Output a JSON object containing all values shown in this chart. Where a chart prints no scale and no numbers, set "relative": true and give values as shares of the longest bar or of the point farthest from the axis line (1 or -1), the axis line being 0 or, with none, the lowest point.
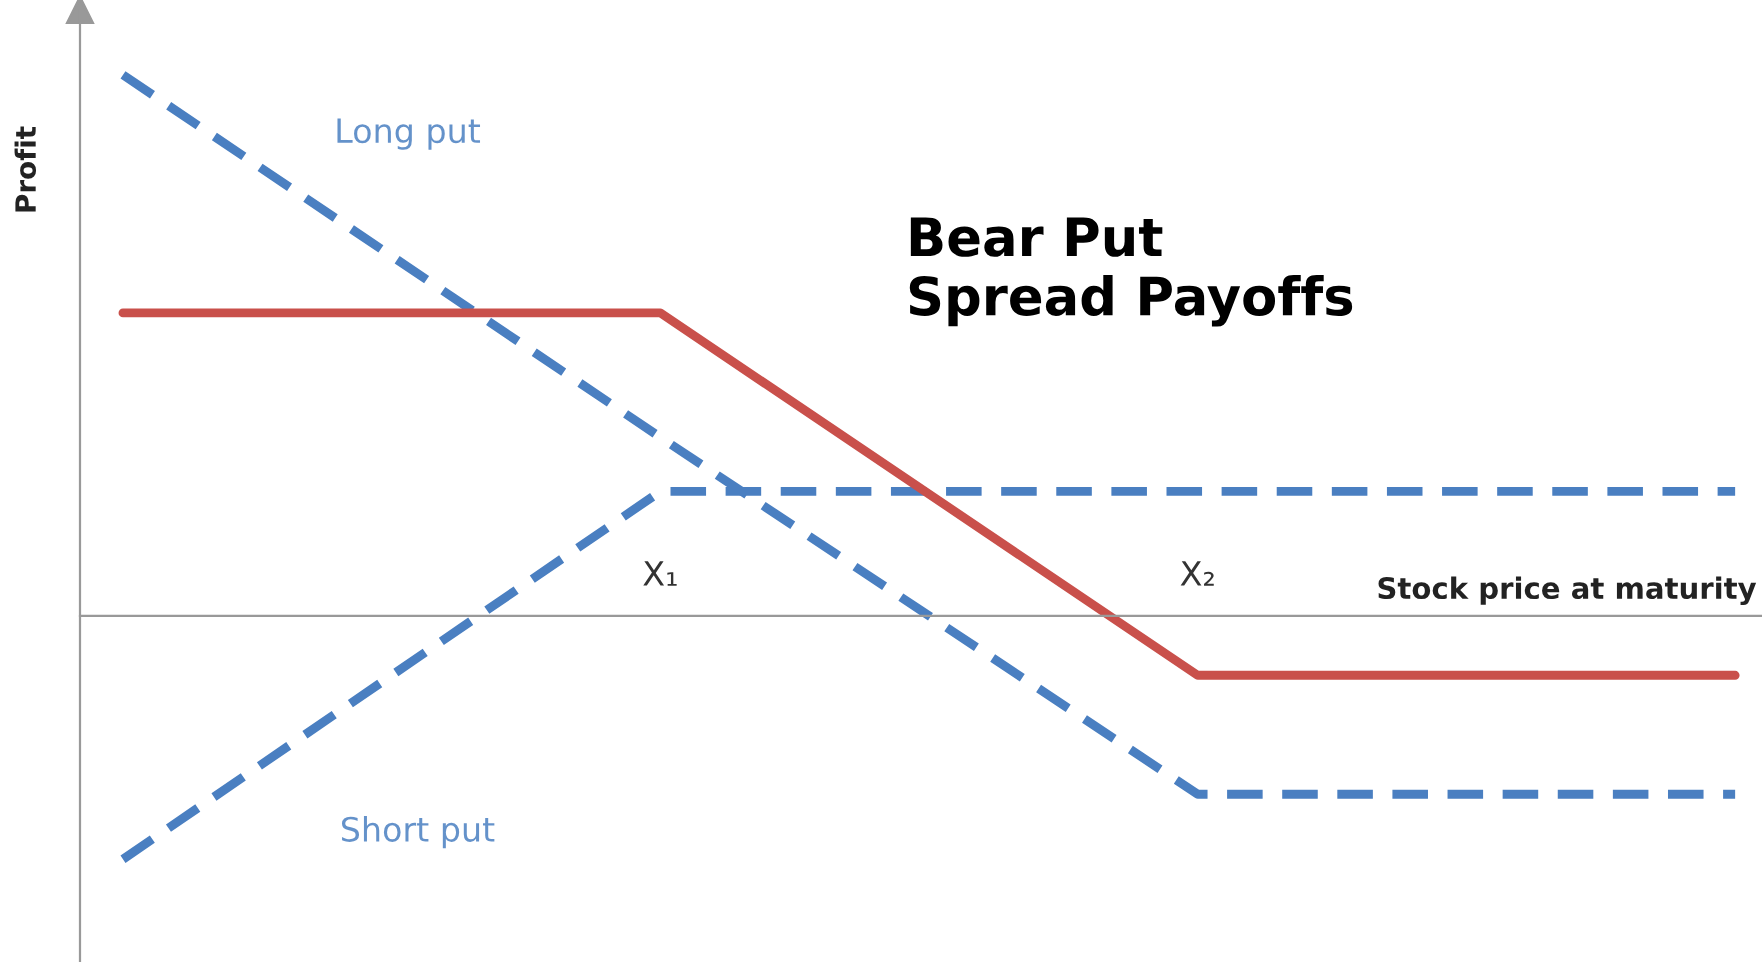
{
  "chart_data": {
    "type": "line",
    "title": "Bear Put\nSpread Payoffs",
    "xlabel": "Stock price at maturity",
    "ylabel": "Profit",
    "relative": true,
    "categories": [
      null,
      "X₁",
      "X₂",
      null
    ],
    "series": [
      {
        "name": "Long put",
        "color": "#4a7fc1",
        "values": [
          1.0,
          0.33,
          -0.33,
          -0.33
        ],
        "line_style": "dashed"
      },
      {
        "name": "Short put",
        "color": "#4a7fc1",
        "values": [
          -0.45,
          0.23,
          0.23,
          0.23
        ],
        "line_style": "dashed"
      },
      {
        "color": "#c9504b",
        "values": [
          0.56,
          0.56,
          -0.11,
          -0.11
        ],
        "line_style": "solid"
      }
    ],
    "legend": false,
    "grid": false,
    "marker": "none"
  }
}
